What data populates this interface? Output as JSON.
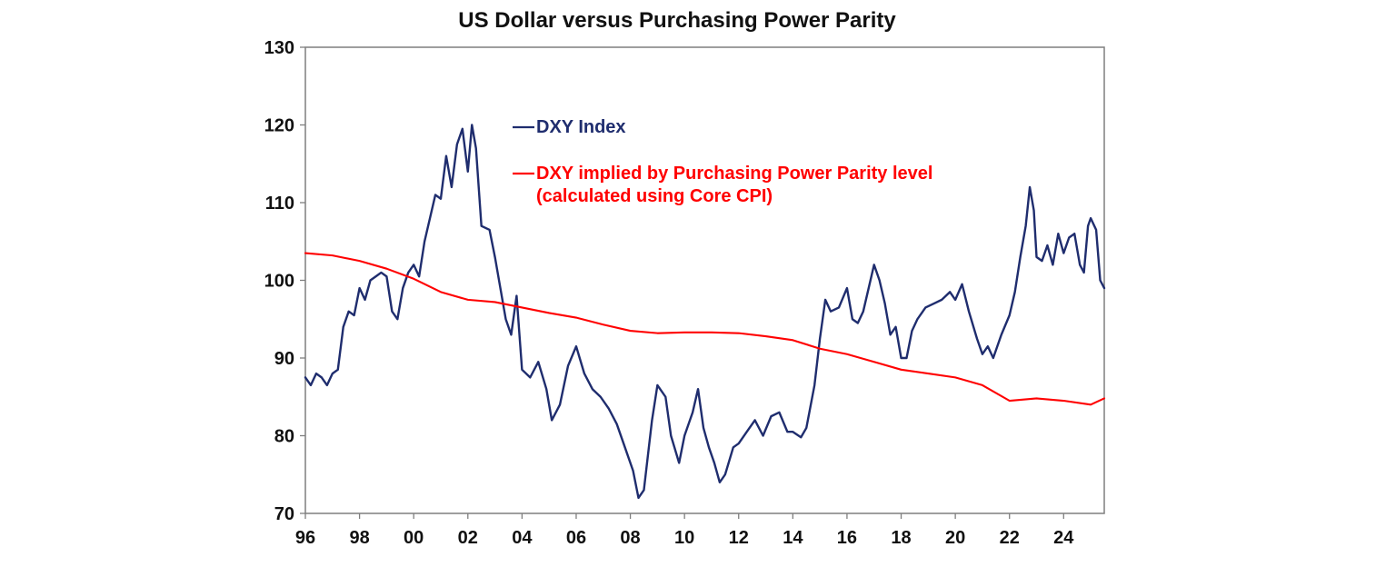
{
  "chart_data": {
    "type": "line",
    "title": "US Dollar versus Purchasing Power Parity",
    "xlabel": "",
    "ylabel": "",
    "xlim": [
      1996,
      2025.5
    ],
    "ylim": [
      70,
      130
    ],
    "x_ticks": [
      1996,
      1998,
      2000,
      2002,
      2004,
      2006,
      2008,
      2010,
      2012,
      2014,
      2016,
      2018,
      2020,
      2022,
      2024
    ],
    "x_tick_labels": [
      "96",
      "98",
      "00",
      "02",
      "04",
      "06",
      "08",
      "10",
      "12",
      "14",
      "16",
      "18",
      "20",
      "22",
      "24"
    ],
    "y_ticks": [
      70,
      80,
      90,
      100,
      110,
      120,
      130
    ],
    "y_tick_labels": [
      "70",
      "80",
      "90",
      "100",
      "110",
      "120",
      "130"
    ],
    "grid": false,
    "legend": "inside-top",
    "series": [
      {
        "name": "DXY Index",
        "color": "#1f2d6e",
        "points": [
          [
            1996.0,
            87.5
          ],
          [
            1996.2,
            86.5
          ],
          [
            1996.4,
            88
          ],
          [
            1996.6,
            87.5
          ],
          [
            1996.8,
            86.5
          ],
          [
            1997.0,
            88
          ],
          [
            1997.2,
            88.5
          ],
          [
            1997.4,
            94
          ],
          [
            1997.6,
            96
          ],
          [
            1997.8,
            95.5
          ],
          [
            1998.0,
            99
          ],
          [
            1998.2,
            97.5
          ],
          [
            1998.4,
            100
          ],
          [
            1998.6,
            100.5
          ],
          [
            1998.8,
            101
          ],
          [
            1999.0,
            100.5
          ],
          [
            1999.2,
            96
          ],
          [
            1999.4,
            95
          ],
          [
            1999.6,
            99
          ],
          [
            1999.8,
            101
          ],
          [
            2000.0,
            102
          ],
          [
            2000.2,
            100.5
          ],
          [
            2000.4,
            105
          ],
          [
            2000.6,
            108
          ],
          [
            2000.8,
            111
          ],
          [
            2001.0,
            110.5
          ],
          [
            2001.2,
            116
          ],
          [
            2001.4,
            112
          ],
          [
            2001.6,
            117.5
          ],
          [
            2001.8,
            119.5
          ],
          [
            2002.0,
            114
          ],
          [
            2002.15,
            120
          ],
          [
            2002.3,
            117
          ],
          [
            2002.5,
            107
          ],
          [
            2002.8,
            106.5
          ],
          [
            2003.0,
            103
          ],
          [
            2003.2,
            99
          ],
          [
            2003.4,
            95
          ],
          [
            2003.6,
            93
          ],
          [
            2003.8,
            98
          ],
          [
            2004.0,
            88.5
          ],
          [
            2004.3,
            87.5
          ],
          [
            2004.6,
            89.5
          ],
          [
            2004.9,
            86
          ],
          [
            2005.1,
            82
          ],
          [
            2005.4,
            84
          ],
          [
            2005.7,
            89
          ],
          [
            2006.0,
            91.5
          ],
          [
            2006.3,
            88
          ],
          [
            2006.6,
            86
          ],
          [
            2006.9,
            85
          ],
          [
            2007.2,
            83.5
          ],
          [
            2007.5,
            81.5
          ],
          [
            2007.8,
            78.5
          ],
          [
            2008.1,
            75.5
          ],
          [
            2008.3,
            72
          ],
          [
            2008.5,
            73
          ],
          [
            2008.8,
            82
          ],
          [
            2009.0,
            86.5
          ],
          [
            2009.3,
            85
          ],
          [
            2009.5,
            80
          ],
          [
            2009.8,
            76.5
          ],
          [
            2010.0,
            80
          ],
          [
            2010.3,
            83
          ],
          [
            2010.5,
            86
          ],
          [
            2010.7,
            81
          ],
          [
            2010.9,
            78.5
          ],
          [
            2011.1,
            76.5
          ],
          [
            2011.3,
            74
          ],
          [
            2011.5,
            75
          ],
          [
            2011.8,
            78.5
          ],
          [
            2012.0,
            79
          ],
          [
            2012.3,
            80.5
          ],
          [
            2012.6,
            82
          ],
          [
            2012.9,
            80
          ],
          [
            2013.2,
            82.5
          ],
          [
            2013.5,
            83
          ],
          [
            2013.8,
            80.5
          ],
          [
            2014.0,
            80.5
          ],
          [
            2014.3,
            79.8
          ],
          [
            2014.5,
            81
          ],
          [
            2014.8,
            86.5
          ],
          [
            2015.0,
            92.5
          ],
          [
            2015.2,
            97.5
          ],
          [
            2015.4,
            96
          ],
          [
            2015.7,
            96.5
          ],
          [
            2016.0,
            99
          ],
          [
            2016.2,
            95
          ],
          [
            2016.4,
            94.5
          ],
          [
            2016.6,
            96
          ],
          [
            2016.8,
            99
          ],
          [
            2017.0,
            102
          ],
          [
            2017.2,
            100
          ],
          [
            2017.4,
            97
          ],
          [
            2017.6,
            93
          ],
          [
            2017.8,
            94
          ],
          [
            2018.0,
            90
          ],
          [
            2018.2,
            90
          ],
          [
            2018.4,
            93.5
          ],
          [
            2018.6,
            95
          ],
          [
            2018.9,
            96.5
          ],
          [
            2019.2,
            97
          ],
          [
            2019.5,
            97.5
          ],
          [
            2019.8,
            98.5
          ],
          [
            2020.0,
            97.5
          ],
          [
            2020.25,
            99.5
          ],
          [
            2020.5,
            96
          ],
          [
            2020.8,
            92.5
          ],
          [
            2021.0,
            90.5
          ],
          [
            2021.2,
            91.5
          ],
          [
            2021.4,
            90
          ],
          [
            2021.7,
            93
          ],
          [
            2022.0,
            95.5
          ],
          [
            2022.2,
            98.5
          ],
          [
            2022.4,
            103
          ],
          [
            2022.6,
            107
          ],
          [
            2022.75,
            112
          ],
          [
            2022.9,
            109
          ],
          [
            2023.0,
            103
          ],
          [
            2023.2,
            102.5
          ],
          [
            2023.4,
            104.5
          ],
          [
            2023.6,
            102
          ],
          [
            2023.8,
            106
          ],
          [
            2024.0,
            103.5
          ],
          [
            2024.2,
            105.5
          ],
          [
            2024.4,
            106
          ],
          [
            2024.6,
            102
          ],
          [
            2024.75,
            101
          ],
          [
            2024.9,
            107
          ],
          [
            2025.0,
            108
          ],
          [
            2025.2,
            106.5
          ],
          [
            2025.35,
            100
          ],
          [
            2025.5,
            99
          ]
        ]
      },
      {
        "name": "DXY implied by Purchasing Power Parity level\n(calculated using Core CPI)",
        "color": "#ff0000",
        "points": [
          [
            1996.0,
            103.5
          ],
          [
            1997.0,
            103.2
          ],
          [
            1998.0,
            102.5
          ],
          [
            1999.0,
            101.5
          ],
          [
            2000.0,
            100.2
          ],
          [
            2001.0,
            98.5
          ],
          [
            2002.0,
            97.5
          ],
          [
            2003.0,
            97.2
          ],
          [
            2004.0,
            96.5
          ],
          [
            2005.0,
            95.8
          ],
          [
            2006.0,
            95.2
          ],
          [
            2007.0,
            94.3
          ],
          [
            2008.0,
            93.5
          ],
          [
            2009.0,
            93.2
          ],
          [
            2010.0,
            93.3
          ],
          [
            2011.0,
            93.3
          ],
          [
            2012.0,
            93.2
          ],
          [
            2013.0,
            92.8
          ],
          [
            2014.0,
            92.3
          ],
          [
            2015.0,
            91.2
          ],
          [
            2016.0,
            90.5
          ],
          [
            2017.0,
            89.5
          ],
          [
            2018.0,
            88.5
          ],
          [
            2019.0,
            88.0
          ],
          [
            2020.0,
            87.5
          ],
          [
            2021.0,
            86.5
          ],
          [
            2022.0,
            84.5
          ],
          [
            2023.0,
            84.8
          ],
          [
            2024.0,
            84.5
          ],
          [
            2025.0,
            84.0
          ],
          [
            2025.5,
            84.8
          ]
        ]
      }
    ],
    "legend_entries": [
      {
        "text": "DXY Index",
        "color": "#1f2d6e"
      },
      {
        "text": "DXY implied by Purchasing Power Parity level",
        "text2": "(calculated using Core CPI)",
        "color": "#ff0000"
      }
    ]
  }
}
